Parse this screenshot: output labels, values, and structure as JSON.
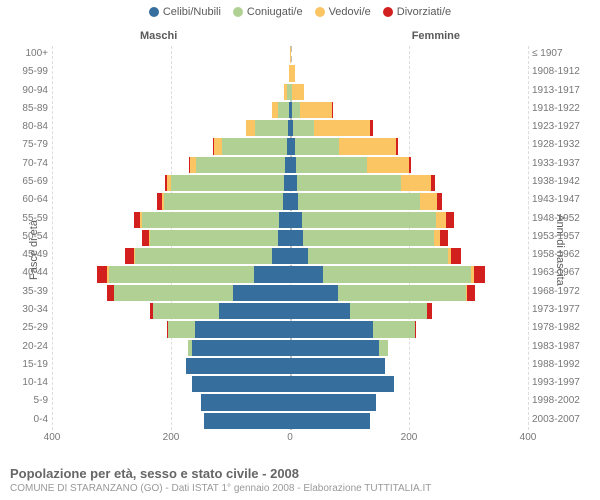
{
  "type": "population-pyramid",
  "background_color": "#ffffff",
  "grid_color": "#dcdcdc",
  "center_grid_color": "#bfbfbf",
  "text_color": "#5a5a5a",
  "legend": [
    {
      "label": "Celibi/Nubili",
      "color": "#366f9d"
    },
    {
      "label": "Coniugati/e",
      "color": "#b1d194"
    },
    {
      "label": "Vedovi/e",
      "color": "#fac562"
    },
    {
      "label": "Divorziati/e",
      "color": "#d1201e"
    }
  ],
  "subheads": {
    "left": "Maschi",
    "right": "Femmine"
  },
  "y_axis_title_left": "Fasce di età",
  "y_axis_title_right": "Anni di nascita",
  "x_axis": {
    "max": 400,
    "ticks": [
      400,
      200,
      0,
      200,
      400
    ]
  },
  "title": "Popolazione per età, sesso e stato civile - 2008",
  "subtitle": "COMUNE DI STARANZANO (GO) - Dati ISTAT 1° gennaio 2008 - Elaborazione TUTTITALIA.IT",
  "rows": [
    {
      "age": "100+",
      "birth": "≤ 1907",
      "m": [
        0,
        0,
        0,
        0
      ],
      "f": [
        0,
        0,
        2,
        0
      ]
    },
    {
      "age": "95-99",
      "birth": "1908-1912",
      "m": [
        0,
        0,
        2,
        0
      ],
      "f": [
        0,
        0,
        8,
        0
      ]
    },
    {
      "age": "90-94",
      "birth": "1913-1917",
      "m": [
        0,
        5,
        5,
        0
      ],
      "f": [
        0,
        3,
        20,
        0
      ]
    },
    {
      "age": "85-89",
      "birth": "1918-1922",
      "m": [
        2,
        18,
        10,
        0
      ],
      "f": [
        4,
        12,
        55,
        2
      ]
    },
    {
      "age": "80-84",
      "birth": "1923-1927",
      "m": [
        4,
        55,
        15,
        0
      ],
      "f": [
        5,
        35,
        95,
        4
      ]
    },
    {
      "age": "75-79",
      "birth": "1928-1932",
      "m": [
        5,
        110,
        12,
        2
      ],
      "f": [
        8,
        75,
        95,
        4
      ]
    },
    {
      "age": "70-74",
      "birth": "1933-1937",
      "m": [
        8,
        150,
        10,
        2
      ],
      "f": [
        10,
        120,
        70,
        4
      ]
    },
    {
      "age": "65-69",
      "birth": "1938-1942",
      "m": [
        10,
        190,
        6,
        4
      ],
      "f": [
        12,
        175,
        50,
        6
      ]
    },
    {
      "age": "60-64",
      "birth": "1943-1947",
      "m": [
        12,
        200,
        4,
        8
      ],
      "f": [
        14,
        205,
        28,
        8
      ]
    },
    {
      "age": "55-59",
      "birth": "1948-1952",
      "m": [
        18,
        230,
        4,
        10
      ],
      "f": [
        20,
        225,
        18,
        12
      ]
    },
    {
      "age": "50-54",
      "birth": "1953-1957",
      "m": [
        20,
        215,
        2,
        12
      ],
      "f": [
        22,
        220,
        10,
        14
      ]
    },
    {
      "age": "45-49",
      "birth": "1958-1962",
      "m": [
        30,
        230,
        2,
        15
      ],
      "f": [
        30,
        235,
        6,
        16
      ]
    },
    {
      "age": "40-44",
      "birth": "1963-1967",
      "m": [
        60,
        245,
        2,
        18
      ],
      "f": [
        55,
        250,
        4,
        18
      ]
    },
    {
      "age": "35-39",
      "birth": "1968-1972",
      "m": [
        95,
        200,
        0,
        12
      ],
      "f": [
        80,
        215,
        2,
        14
      ]
    },
    {
      "age": "30-34",
      "birth": "1973-1977",
      "m": [
        120,
        110,
        0,
        6
      ],
      "f": [
        100,
        130,
        0,
        8
      ]
    },
    {
      "age": "25-29",
      "birth": "1978-1982",
      "m": [
        160,
        45,
        0,
        2
      ],
      "f": [
        140,
        70,
        0,
        2
      ]
    },
    {
      "age": "20-24",
      "birth": "1983-1987",
      "m": [
        165,
        6,
        0,
        0
      ],
      "f": [
        150,
        14,
        0,
        0
      ]
    },
    {
      "age": "15-19",
      "birth": "1988-1992",
      "m": [
        175,
        0,
        0,
        0
      ],
      "f": [
        160,
        0,
        0,
        0
      ]
    },
    {
      "age": "10-14",
      "birth": "1993-1997",
      "m": [
        165,
        0,
        0,
        0
      ],
      "f": [
        175,
        0,
        0,
        0
      ]
    },
    {
      "age": "5-9",
      "birth": "1998-2002",
      "m": [
        150,
        0,
        0,
        0
      ],
      "f": [
        145,
        0,
        0,
        0
      ]
    },
    {
      "age": "0-4",
      "birth": "2003-2007",
      "m": [
        145,
        0,
        0,
        0
      ],
      "f": [
        135,
        0,
        0,
        0
      ]
    }
  ]
}
